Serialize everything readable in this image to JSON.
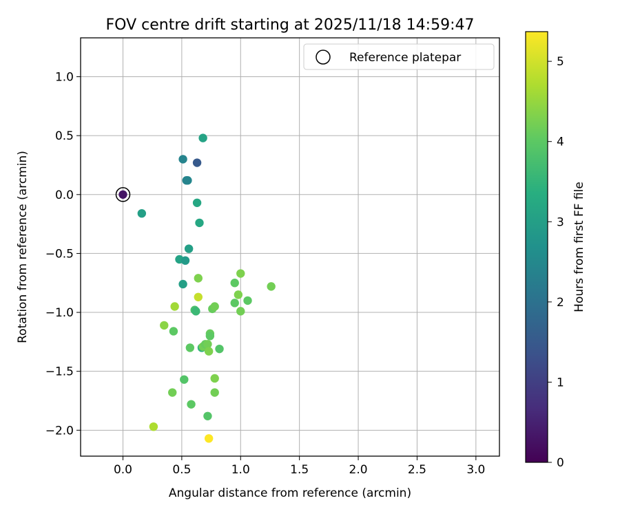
{
  "chart_data": {
    "type": "scatter",
    "title": "FOV centre drift starting at 2025/11/18 14:59:47",
    "xlabel": "Angular distance from reference (arcmin)",
    "ylabel": "Rotation from reference (arcmin)",
    "xlim": [
      -0.36,
      3.2
    ],
    "ylim": [
      -2.22,
      1.33
    ],
    "xticks": [
      0.0,
      0.5,
      1.0,
      1.5,
      2.0,
      2.5,
      3.0
    ],
    "xtick_labels": [
      "0.0",
      "0.5",
      "1.0",
      "1.5",
      "2.0",
      "2.5",
      "3.0"
    ],
    "yticks": [
      1.0,
      0.5,
      0.0,
      -0.5,
      -1.0,
      -1.5,
      -2.0
    ],
    "ytick_labels": [
      "1.0",
      "0.5",
      "0.0",
      "−0.5",
      "−1.0",
      "−1.5",
      "−2.0"
    ],
    "grid": true,
    "legend": {
      "position": "top-right",
      "entries": [
        "Reference platepar"
      ]
    },
    "reference_point": {
      "label": "Reference platepar",
      "x": 0.0,
      "y": 0.0
    },
    "colorbar": {
      "label": "Hours from first FF file",
      "min": 0,
      "max": 5.37,
      "ticks": [
        0,
        1,
        2,
        3,
        4,
        5
      ],
      "tick_labels": [
        "0",
        "1",
        "2",
        "3",
        "4",
        "5"
      ],
      "colormap": "viridis"
    },
    "points": [
      {
        "x": 0.0,
        "y": 0.0,
        "hours": 0.3
      },
      {
        "x": 0.63,
        "y": 0.27,
        "hours": 1.5
      },
      {
        "x": 0.51,
        "y": 0.3,
        "hours": 2.4
      },
      {
        "x": 0.55,
        "y": 0.12,
        "hours": 2.5
      },
      {
        "x": 0.54,
        "y": 0.12,
        "hours": 2.4
      },
      {
        "x": 0.68,
        "y": 0.48,
        "hours": 3.1
      },
      {
        "x": 0.16,
        "y": -0.16,
        "hours": 3.0
      },
      {
        "x": 0.63,
        "y": -0.07,
        "hours": 3.2
      },
      {
        "x": 0.65,
        "y": -0.24,
        "hours": 3.2
      },
      {
        "x": 0.56,
        "y": -0.46,
        "hours": 3.0
      },
      {
        "x": 0.48,
        "y": -0.55,
        "hours": 3.1
      },
      {
        "x": 0.53,
        "y": -0.56,
        "hours": 2.9
      },
      {
        "x": 0.51,
        "y": -0.76,
        "hours": 3.0
      },
      {
        "x": 0.64,
        "y": -0.71,
        "hours": 4.3
      },
      {
        "x": 0.64,
        "y": -0.87,
        "hours": 4.9
      },
      {
        "x": 0.61,
        "y": -0.98,
        "hours": 3.8
      },
      {
        "x": 0.62,
        "y": -0.99,
        "hours": 3.6
      },
      {
        "x": 0.44,
        "y": -0.95,
        "hours": 4.6
      },
      {
        "x": 0.35,
        "y": -1.11,
        "hours": 4.4
      },
      {
        "x": 0.43,
        "y": -1.16,
        "hours": 4.0
      },
      {
        "x": 0.57,
        "y": -1.3,
        "hours": 4.0
      },
      {
        "x": 0.67,
        "y": -1.3,
        "hours": 3.5
      },
      {
        "x": 0.68,
        "y": -1.29,
        "hours": 4.2
      },
      {
        "x": 0.7,
        "y": -1.27,
        "hours": 4.1
      },
      {
        "x": 0.72,
        "y": -1.27,
        "hours": 4.2
      },
      {
        "x": 0.73,
        "y": -1.33,
        "hours": 4.3
      },
      {
        "x": 0.74,
        "y": -1.18,
        "hours": 4.1
      },
      {
        "x": 0.74,
        "y": -1.2,
        "hours": 4.0
      },
      {
        "x": 0.82,
        "y": -1.31,
        "hours": 3.9
      },
      {
        "x": 0.76,
        "y": -0.97,
        "hours": 4.1
      },
      {
        "x": 0.78,
        "y": -0.95,
        "hours": 4.2
      },
      {
        "x": 0.95,
        "y": -0.75,
        "hours": 4.0
      },
      {
        "x": 1.0,
        "y": -0.67,
        "hours": 4.3
      },
      {
        "x": 0.98,
        "y": -0.85,
        "hours": 4.3
      },
      {
        "x": 0.95,
        "y": -0.92,
        "hours": 4.0
      },
      {
        "x": 1.06,
        "y": -0.9,
        "hours": 4.0
      },
      {
        "x": 1.0,
        "y": -0.99,
        "hours": 4.2
      },
      {
        "x": 1.26,
        "y": -0.78,
        "hours": 4.2
      },
      {
        "x": 0.52,
        "y": -1.57,
        "hours": 3.9
      },
      {
        "x": 0.42,
        "y": -1.68,
        "hours": 4.2
      },
      {
        "x": 0.58,
        "y": -1.78,
        "hours": 4.0
      },
      {
        "x": 0.78,
        "y": -1.56,
        "hours": 4.3
      },
      {
        "x": 0.78,
        "y": -1.68,
        "hours": 4.2
      },
      {
        "x": 0.72,
        "y": -1.88,
        "hours": 3.9
      },
      {
        "x": 0.26,
        "y": -1.97,
        "hours": 4.7
      },
      {
        "x": 0.73,
        "y": -2.07,
        "hours": 5.37
      }
    ]
  }
}
